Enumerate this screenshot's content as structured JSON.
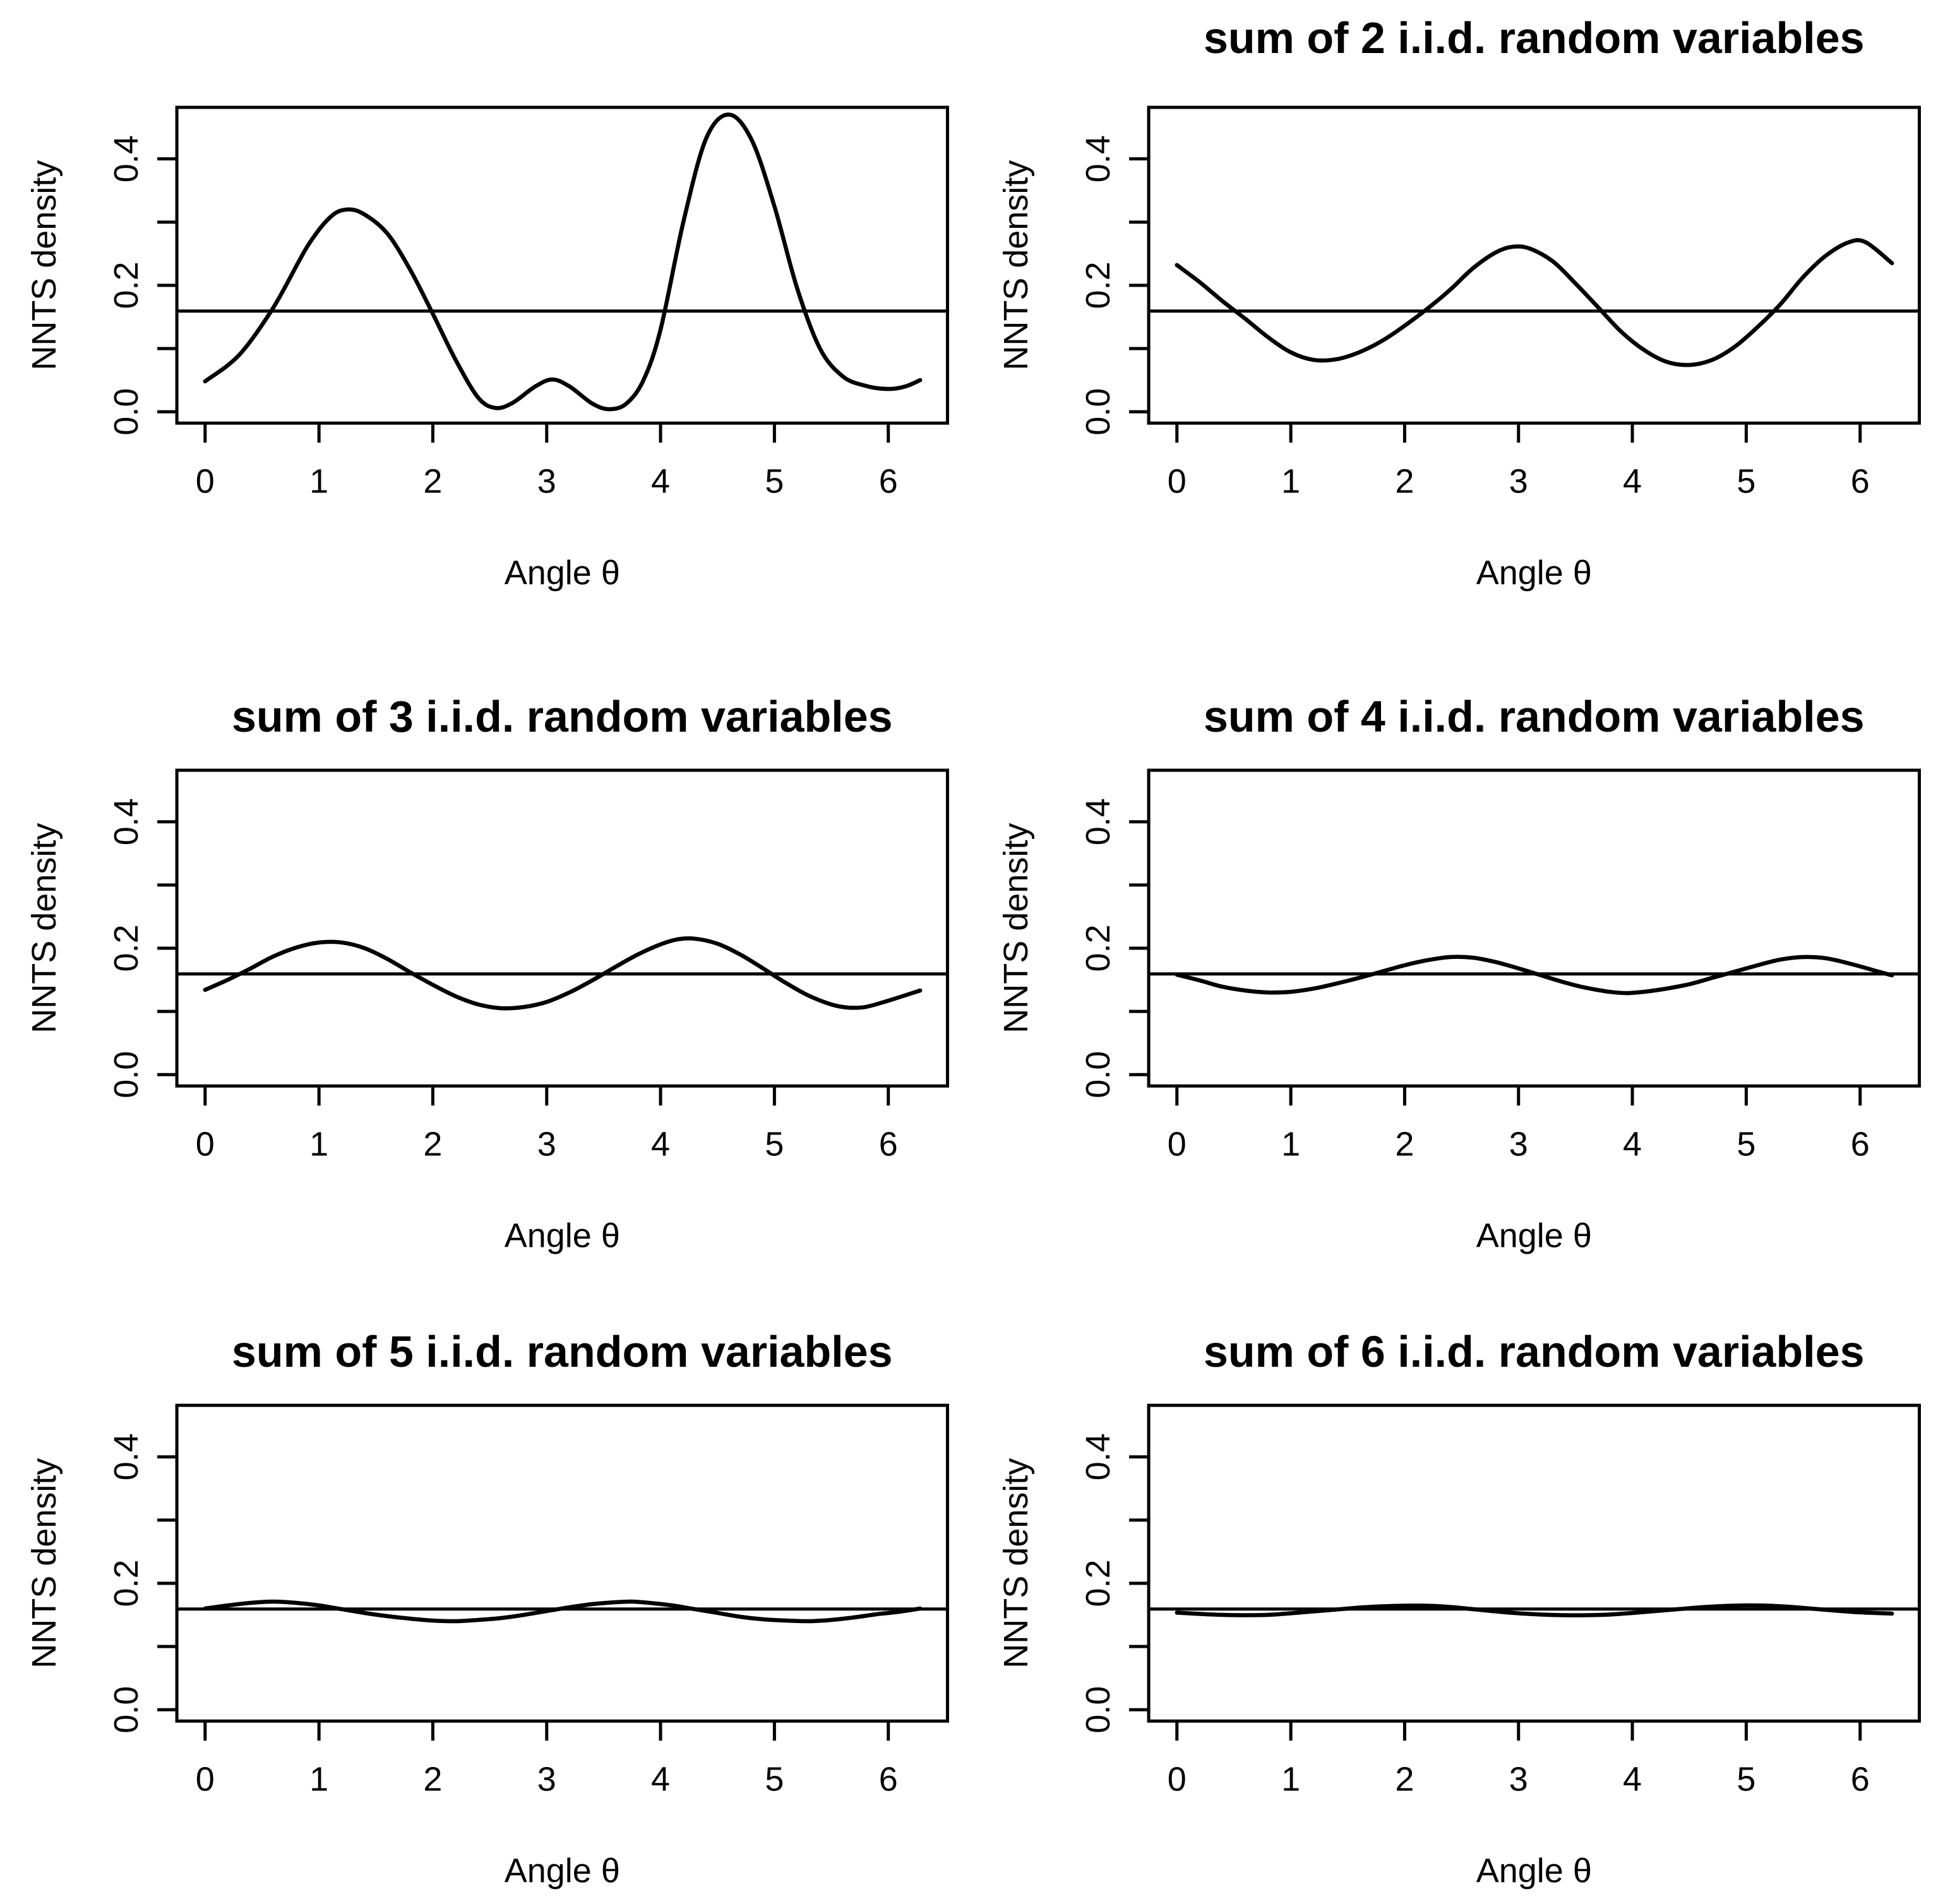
{
  "figure": {
    "background_color": "#ffffff",
    "line_color": "#000000",
    "rows": 3,
    "columns": 2
  },
  "chart_data": [
    {
      "type": "line",
      "title": "",
      "xlabel": "Angle θ",
      "ylabel": "NNTS density",
      "xlim": [
        0,
        6.2832
      ],
      "ylim": [
        0,
        0.47
      ],
      "xticks": [
        0,
        1,
        2,
        3,
        4,
        5,
        6
      ],
      "yticks_labeled": [
        {
          "label": "0.0",
          "value": 0.0
        },
        {
          "label": "0.2",
          "value": 0.2
        },
        {
          "label": "0.4",
          "value": 0.4
        }
      ],
      "yticks_minor": [
        0.1,
        0.3
      ],
      "grid": false,
      "legend": null,
      "reference_line_y": 0.1592,
      "series": [
        {
          "name": "NNTS density",
          "x": [
            0,
            0.3,
            0.6,
            0.9,
            1.1,
            1.25,
            1.4,
            1.6,
            1.8,
            2.0,
            2.2,
            2.4,
            2.55,
            2.7,
            2.9,
            3.05,
            3.2,
            3.4,
            3.55,
            3.7,
            3.85,
            4.0,
            4.2,
            4.4,
            4.6,
            4.8,
            5.0,
            5.2,
            5.4,
            5.6,
            5.8,
            6.0,
            6.15,
            6.28
          ],
          "y": [
            0.048,
            0.09,
            0.165,
            0.262,
            0.308,
            0.32,
            0.312,
            0.282,
            0.225,
            0.155,
            0.082,
            0.022,
            0.006,
            0.014,
            0.04,
            0.051,
            0.04,
            0.013,
            0.004,
            0.013,
            0.05,
            0.13,
            0.3,
            0.432,
            0.47,
            0.43,
            0.325,
            0.195,
            0.1,
            0.056,
            0.041,
            0.036,
            0.04,
            0.05
          ]
        }
      ]
    },
    {
      "type": "line",
      "title": "sum of 2 i.i.d. random variables",
      "xlabel": "Angle θ",
      "ylabel": "NNTS density",
      "xlim": [
        0,
        6.2832
      ],
      "ylim": [
        0,
        0.47
      ],
      "xticks": [
        0,
        1,
        2,
        3,
        4,
        5,
        6
      ],
      "yticks_labeled": [
        {
          "label": "0.0",
          "value": 0.0
        },
        {
          "label": "0.2",
          "value": 0.2
        },
        {
          "label": "0.4",
          "value": 0.4
        }
      ],
      "yticks_minor": [
        0.1,
        0.3
      ],
      "grid": false,
      "legend": null,
      "reference_line_y": 0.1592,
      "series": [
        {
          "name": "NNTS density",
          "x": [
            0,
            0.2,
            0.4,
            0.6,
            0.8,
            1.0,
            1.2,
            1.4,
            1.6,
            1.8,
            2.0,
            2.2,
            2.4,
            2.6,
            2.8,
            2.95,
            3.1,
            3.3,
            3.5,
            3.7,
            3.9,
            4.1,
            4.3,
            4.5,
            4.7,
            4.9,
            5.1,
            5.3,
            5.5,
            5.7,
            5.9,
            6.05,
            6.28
          ],
          "y": [
            0.232,
            0.205,
            0.175,
            0.147,
            0.118,
            0.094,
            0.082,
            0.083,
            0.094,
            0.112,
            0.136,
            0.163,
            0.193,
            0.227,
            0.252,
            0.261,
            0.258,
            0.238,
            0.203,
            0.165,
            0.127,
            0.098,
            0.079,
            0.074,
            0.082,
            0.103,
            0.134,
            0.17,
            0.213,
            0.247,
            0.268,
            0.268,
            0.235
          ]
        }
      ]
    },
    {
      "type": "line",
      "title": "sum of 3 i.i.d. random variables",
      "xlabel": "Angle θ",
      "ylabel": "NNTS density",
      "xlim": [
        0,
        6.2832
      ],
      "ylim": [
        0,
        0.47
      ],
      "xticks": [
        0,
        1,
        2,
        3,
        4,
        5,
        6
      ],
      "yticks_labeled": [
        {
          "label": "0.0",
          "value": 0.0
        },
        {
          "label": "0.2",
          "value": 0.2
        },
        {
          "label": "0.4",
          "value": 0.4
        }
      ],
      "yticks_minor": [
        0.1,
        0.3
      ],
      "grid": false,
      "legend": null,
      "reference_line_y": 0.1592,
      "series": [
        {
          "name": "NNTS density",
          "x": [
            0,
            0.2,
            0.4,
            0.6,
            0.8,
            1.0,
            1.2,
            1.4,
            1.6,
            1.8,
            2.0,
            2.2,
            2.4,
            2.6,
            2.8,
            3.0,
            3.2,
            3.4,
            3.6,
            3.8,
            4.0,
            4.15,
            4.3,
            4.5,
            4.7,
            4.9,
            5.1,
            5.3,
            5.5,
            5.65,
            5.8,
            6.0,
            6.28
          ],
          "y": [
            0.134,
            0.15,
            0.168,
            0.187,
            0.201,
            0.209,
            0.209,
            0.2,
            0.183,
            0.162,
            0.142,
            0.124,
            0.111,
            0.105,
            0.107,
            0.115,
            0.13,
            0.149,
            0.17,
            0.19,
            0.206,
            0.214,
            0.215,
            0.207,
            0.19,
            0.168,
            0.145,
            0.125,
            0.111,
            0.106,
            0.107,
            0.117,
            0.133
          ]
        }
      ]
    },
    {
      "type": "line",
      "title": "sum of 4 i.i.d. random variables",
      "xlabel": "Angle θ",
      "ylabel": "NNTS density",
      "xlim": [
        0,
        6.2832
      ],
      "ylim": [
        0,
        0.47
      ],
      "xticks": [
        0,
        1,
        2,
        3,
        4,
        5,
        6
      ],
      "yticks_labeled": [
        {
          "label": "0.0",
          "value": 0.0
        },
        {
          "label": "0.2",
          "value": 0.2
        },
        {
          "label": "0.4",
          "value": 0.4
        }
      ],
      "yticks_minor": [
        0.1,
        0.3
      ],
      "grid": false,
      "legend": null,
      "reference_line_y": 0.1592,
      "series": [
        {
          "name": "NNTS density",
          "x": [
            0,
            0.2,
            0.4,
            0.6,
            0.8,
            1.0,
            1.2,
            1.4,
            1.6,
            1.8,
            2.0,
            2.2,
            2.4,
            2.6,
            2.8,
            3.0,
            3.2,
            3.4,
            3.6,
            3.8,
            3.95,
            4.1,
            4.3,
            4.5,
            4.7,
            4.9,
            5.1,
            5.3,
            5.5,
            5.7,
            5.9,
            6.1,
            6.28
          ],
          "y": [
            0.158,
            0.149,
            0.139,
            0.133,
            0.13,
            0.131,
            0.136,
            0.144,
            0.153,
            0.163,
            0.173,
            0.181,
            0.186,
            0.185,
            0.178,
            0.168,
            0.157,
            0.146,
            0.137,
            0.131,
            0.129,
            0.131,
            0.136,
            0.143,
            0.153,
            0.163,
            0.173,
            0.182,
            0.186,
            0.184,
            0.176,
            0.166,
            0.157
          ]
        }
      ]
    },
    {
      "type": "line",
      "title": "sum of 5 i.i.d. random variables",
      "xlabel": "Angle θ",
      "ylabel": "NNTS density",
      "xlim": [
        0,
        6.2832
      ],
      "ylim": [
        0,
        0.47
      ],
      "xticks": [
        0,
        1,
        2,
        3,
        4,
        5,
        6
      ],
      "yticks_labeled": [
        {
          "label": "0.0",
          "value": 0.0
        },
        {
          "label": "0.2",
          "value": 0.2
        },
        {
          "label": "0.4",
          "value": 0.4
        }
      ],
      "yticks_minor": [
        0.1,
        0.3
      ],
      "grid": false,
      "legend": null,
      "reference_line_y": 0.1592,
      "series": [
        {
          "name": "NNTS density",
          "x": [
            0,
            0.2,
            0.4,
            0.6,
            0.8,
            1.0,
            1.2,
            1.4,
            1.6,
            1.8,
            2.0,
            2.2,
            2.4,
            2.6,
            2.8,
            3.0,
            3.2,
            3.4,
            3.6,
            3.75,
            3.9,
            4.1,
            4.3,
            4.5,
            4.7,
            4.9,
            5.1,
            5.3,
            5.5,
            5.7,
            5.9,
            6.1,
            6.28
          ],
          "y": [
            0.16,
            0.165,
            0.169,
            0.171,
            0.169,
            0.165,
            0.159,
            0.153,
            0.148,
            0.144,
            0.141,
            0.14,
            0.142,
            0.145,
            0.15,
            0.156,
            0.162,
            0.167,
            0.17,
            0.171,
            0.169,
            0.165,
            0.159,
            0.153,
            0.147,
            0.143,
            0.141,
            0.14,
            0.142,
            0.146,
            0.151,
            0.155,
            0.16
          ]
        }
      ]
    },
    {
      "type": "line",
      "title": "sum of 6 i.i.d. random variables",
      "xlabel": "Angle θ",
      "ylabel": "NNTS density",
      "xlim": [
        0,
        6.2832
      ],
      "ylim": [
        0,
        0.47
      ],
      "xticks": [
        0,
        1,
        2,
        3,
        4,
        5,
        6
      ],
      "yticks_labeled": [
        {
          "label": "0.0",
          "value": 0.0
        },
        {
          "label": "0.2",
          "value": 0.2
        },
        {
          "label": "0.4",
          "value": 0.4
        }
      ],
      "yticks_minor": [
        0.1,
        0.3
      ],
      "grid": false,
      "legend": null,
      "reference_line_y": 0.1592,
      "series": [
        {
          "name": "NNTS density",
          "x": [
            0,
            0.2,
            0.4,
            0.6,
            0.8,
            1.0,
            1.2,
            1.4,
            1.6,
            1.8,
            2.0,
            2.2,
            2.4,
            2.6,
            2.8,
            3.0,
            3.2,
            3.4,
            3.6,
            3.8,
            4.0,
            4.2,
            4.4,
            4.6,
            4.8,
            5.0,
            5.2,
            5.4,
            5.6,
            5.8,
            6.0,
            6.28
          ],
          "y": [
            0.1535,
            0.1515,
            0.15,
            0.1495,
            0.15,
            0.1525,
            0.1555,
            0.1585,
            0.1615,
            0.1635,
            0.1645,
            0.1645,
            0.1625,
            0.159,
            0.1555,
            0.1525,
            0.1505,
            0.1495,
            0.1495,
            0.1505,
            0.153,
            0.156,
            0.159,
            0.162,
            0.164,
            0.165,
            0.1645,
            0.1625,
            0.1595,
            0.1565,
            0.154,
            0.152
          ]
        }
      ]
    }
  ]
}
